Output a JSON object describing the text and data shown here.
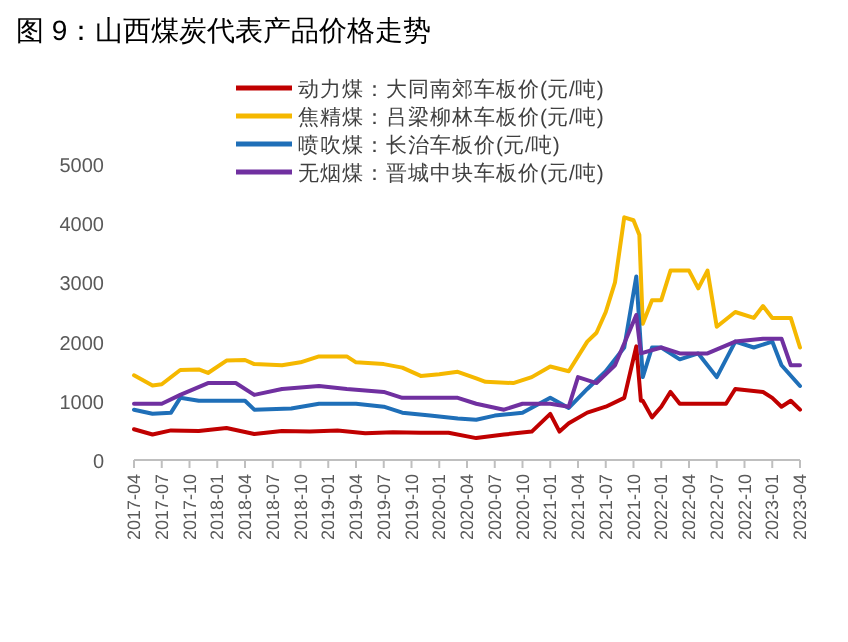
{
  "chart_data": {
    "type": "line",
    "title": "图 9：山西煤炭代表产品价格走势",
    "legend": "top",
    "grid": false,
    "line_style": "solid",
    "marker": "none",
    "xlim": [
      "2017-04",
      "2023-04"
    ],
    "xticks": [
      "2017-04",
      "2017-07",
      "2017-10",
      "2018-01",
      "2018-04",
      "2018-07",
      "2018-10",
      "2019-01",
      "2019-04",
      "2019-07",
      "2019-10",
      "2020-01",
      "2020-04",
      "2020-07",
      "2020-10",
      "2021-01",
      "2021-04",
      "2021-07",
      "2021-10",
      "2022-01",
      "2022-04",
      "2022-07",
      "2022-10",
      "2023-01",
      "2023-04"
    ],
    "ylim": [
      0,
      5000
    ],
    "yticks": [
      0,
      1000,
      2000,
      3000,
      4000,
      5000
    ],
    "series": [
      {
        "name": "动力煤：大同南郊车板价(元/吨)",
        "color": "#c00000",
        "x": [
          "2017-04",
          "2017-06",
          "2017-08",
          "2017-11",
          "2018-02",
          "2018-05",
          "2018-08",
          "2018-11",
          "2019-02",
          "2019-05",
          "2019-08",
          "2019-11",
          "2020-02",
          "2020-05",
          "2020-08",
          "2020-11",
          "2021-01",
          "2021-02",
          "2021-03",
          "2021-05",
          "2021-07",
          "2021-09",
          "2021-10-10",
          "2021-10-25",
          "2021-11",
          "2021-12",
          "2022-01",
          "2022-02",
          "2022-03",
          "2022-08",
          "2022-09",
          "2022-12",
          "2023-01",
          "2023-02",
          "2023-03",
          "2023-04"
        ],
        "values": [
          520,
          430,
          500,
          490,
          540,
          440,
          490,
          480,
          500,
          450,
          470,
          460,
          460,
          370,
          430,
          480,
          780,
          480,
          620,
          800,
          900,
          1050,
          1920,
          1000,
          1000,
          720,
          900,
          1150,
          950,
          950,
          1200,
          1150,
          1050,
          900,
          1000,
          850
        ]
      },
      {
        "name": "焦精煤：吕梁柳林车板价(元/吨)",
        "color": "#f5b800",
        "x": [
          "2017-04",
          "2017-06",
          "2017-07",
          "2017-09",
          "2017-11",
          "2017-12",
          "2018-02",
          "2018-04",
          "2018-05",
          "2018-08",
          "2018-10",
          "2018-12",
          "2019-03",
          "2019-04",
          "2019-07",
          "2019-09",
          "2019-11",
          "2020-01",
          "2020-03",
          "2020-05",
          "2020-06",
          "2020-09",
          "2020-11",
          "2021-01",
          "2021-03",
          "2021-05",
          "2021-06",
          "2021-07",
          "2021-08",
          "2021-09",
          "2021-10-01",
          "2021-10-20",
          "2021-11",
          "2021-12",
          "2022-01",
          "2022-02",
          "2022-04",
          "2022-05",
          "2022-06",
          "2022-07",
          "2022-09",
          "2022-11",
          "2022-12",
          "2023-01",
          "2023-03",
          "2023-04"
        ],
        "values": [
          1430,
          1260,
          1280,
          1520,
          1530,
          1470,
          1680,
          1690,
          1620,
          1600,
          1650,
          1750,
          1750,
          1650,
          1620,
          1560,
          1420,
          1450,
          1490,
          1380,
          1320,
          1300,
          1400,
          1580,
          1500,
          2000,
          2150,
          2500,
          3000,
          4100,
          4050,
          3800,
          2300,
          2700,
          2700,
          3200,
          3200,
          2900,
          3200,
          2250,
          2500,
          2400,
          2600,
          2400,
          2400,
          1900
        ]
      },
      {
        "name": "喷吹煤：长治车板价(元/吨)",
        "color": "#1f6fb8",
        "x": [
          "2017-04",
          "2017-06",
          "2017-08",
          "2017-09",
          "2017-11",
          "2018-02",
          "2018-04",
          "2018-05",
          "2018-09",
          "2018-12",
          "2019-04",
          "2019-07",
          "2019-09",
          "2019-12",
          "2020-03",
          "2020-05",
          "2020-07",
          "2020-10",
          "2021-01",
          "2021-03",
          "2021-05",
          "2021-07",
          "2021-09",
          "2021-10-10",
          "2021-10-25",
          "2021-11",
          "2021-12",
          "2022-01",
          "2022-03",
          "2022-05",
          "2022-07",
          "2022-09",
          "2022-11",
          "2023-01",
          "2023-02",
          "2023-04"
        ],
        "values": [
          850,
          780,
          800,
          1050,
          1000,
          1000,
          1000,
          850,
          870,
          950,
          950,
          900,
          800,
          750,
          700,
          680,
          750,
          800,
          1050,
          880,
          1200,
          1500,
          1900,
          3100,
          1900,
          1400,
          1900,
          1900,
          1700,
          1800,
          1400,
          2000,
          1900,
          2000,
          1600,
          1250
        ]
      },
      {
        "name": "无烟煤：晋城中块车板价(元/吨)",
        "color": "#7030a0",
        "x": [
          "2017-04",
          "2017-07",
          "2017-09",
          "2017-12",
          "2018-03",
          "2018-05",
          "2018-08",
          "2018-12",
          "2019-03",
          "2019-07",
          "2019-09",
          "2019-12",
          "2020-03",
          "2020-05",
          "2020-08",
          "2020-10",
          "2021-01",
          "2021-03",
          "2021-04",
          "2021-06",
          "2021-08",
          "2021-10-10",
          "2021-10-25",
          "2022-01",
          "2022-03",
          "2022-06",
          "2022-09",
          "2022-12",
          "2023-02",
          "2023-03",
          "2023-04"
        ],
        "values": [
          950,
          950,
          1100,
          1300,
          1300,
          1100,
          1200,
          1250,
          1200,
          1150,
          1050,
          1050,
          1050,
          950,
          850,
          950,
          950,
          900,
          1400,
          1300,
          1600,
          2450,
          1800,
          1900,
          1800,
          1800,
          2000,
          2050,
          2050,
          1600,
          1600
        ]
      }
    ]
  }
}
